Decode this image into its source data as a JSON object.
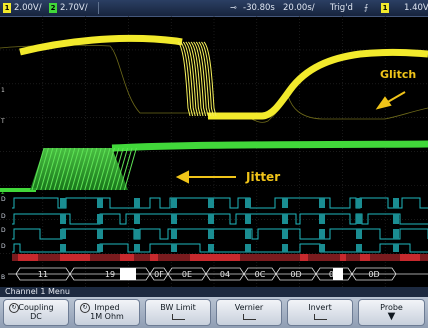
{
  "status": {
    "ch1_scale": "2.00V/",
    "ch2_scale": "2.70V/",
    "delay": "-30.80s",
    "timebase": "20.00s/",
    "trigger_state": "Trig'd",
    "trigger_level": "1.40V",
    "ch1_num": "1",
    "ch2_num": "2",
    "trig_ch_num": "1"
  },
  "annotations": {
    "glitch": "Glitch",
    "jitter": "Jitter"
  },
  "bus": {
    "values": [
      "11",
      "19",
      "0F",
      "0E",
      "04",
      "0C",
      "0D",
      "05",
      "0D"
    ]
  },
  "menu": {
    "title": "Channel 1  Menu",
    "softkeys": [
      {
        "line1": "Coupling",
        "line2": "DC"
      },
      {
        "line1": "Imped",
        "line2": "1M Ohm"
      },
      {
        "line1": "BW Limit",
        "line2": ""
      },
      {
        "line1": "Vernier",
        "line2": ""
      },
      {
        "line1": "Invert",
        "line2": ""
      },
      {
        "line1": "Probe",
        "line2": ""
      }
    ]
  },
  "colors": {
    "ch1": "#f2ea2c",
    "ch2": "#41d83a",
    "digital": "#1fb7be",
    "bus": "#c7292d",
    "annotation": "#f0c419"
  }
}
